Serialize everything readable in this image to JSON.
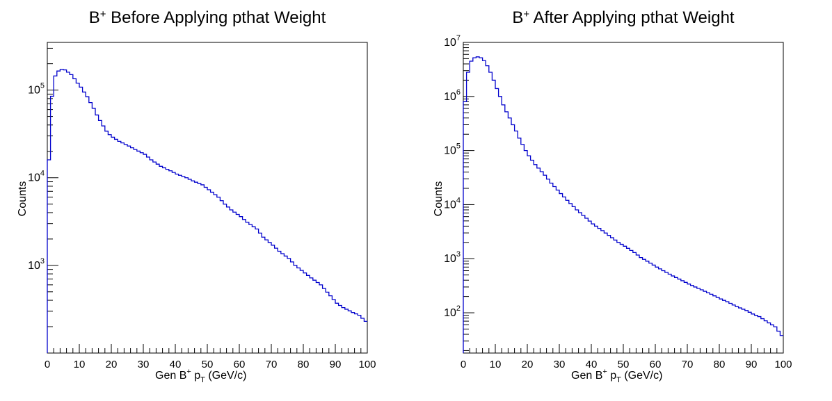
{
  "chart_data": [
    {
      "type": "line",
      "title": {
        "main": "B",
        "sup": "+",
        "rest": " Before Applying pthat Weight"
      },
      "xlabel": {
        "pre": "Gen B",
        "sup": "+",
        "mid": " p",
        "sub": "T",
        "post": " (GeV/c)"
      },
      "ylabel": "Counts",
      "xlim": [
        0,
        100
      ],
      "ylim": [
        100,
        350000
      ],
      "yscale": "log",
      "x_ticks": [
        "0",
        "10",
        "20",
        "30",
        "40",
        "50",
        "60",
        "70",
        "80",
        "90",
        "100"
      ],
      "y_ticks": [
        {
          "base": "10",
          "exp": "3",
          "value": 1000
        },
        {
          "base": "10",
          "exp": "4",
          "value": 10000
        },
        {
          "base": "10",
          "exp": "5",
          "value": 100000
        }
      ],
      "series": [
        {
          "color": "#0000cc",
          "x": [
            0,
            1,
            2,
            3,
            4,
            5,
            6,
            7,
            8,
            9,
            10,
            11,
            12,
            13,
            14,
            15,
            16,
            17,
            18,
            19,
            20,
            22,
            25,
            27,
            30,
            32,
            35,
            38,
            40,
            43,
            45,
            48,
            50,
            53,
            55,
            57,
            60,
            62,
            65,
            67,
            70,
            72,
            75,
            77,
            80,
            82,
            85,
            88,
            90,
            92,
            95,
            97,
            99
          ],
          "values": [
            16000,
            85000,
            145000,
            165000,
            172000,
            170000,
            160000,
            150000,
            135000,
            120000,
            108000,
            95000,
            84000,
            72000,
            62000,
            52000,
            45000,
            39000,
            34000,
            31000,
            29000,
            26000,
            23000,
            21000,
            18500,
            16000,
            13500,
            12000,
            11000,
            10000,
            9200,
            8300,
            7300,
            6000,
            5000,
            4300,
            3600,
            3100,
            2600,
            2100,
            1700,
            1450,
            1200,
            1000,
            820,
            720,
            600,
            450,
            370,
            330,
            290,
            270,
            230
          ]
        }
      ]
    },
    {
      "type": "line",
      "title": {
        "main": "B",
        "sup": "+",
        "rest": " After Applying pthat Weight"
      },
      "xlabel": {
        "pre": "Gen B",
        "sup": "+",
        "mid": " p",
        "sub": "T",
        "post": " (GeV/c)"
      },
      "ylabel": "Counts",
      "xlim": [
        0,
        100
      ],
      "ylim": [
        18,
        10000000
      ],
      "yscale": "log",
      "x_ticks": [
        "0",
        "10",
        "20",
        "30",
        "40",
        "50",
        "60",
        "70",
        "80",
        "90",
        "100"
      ],
      "y_ticks": [
        {
          "base": "10",
          "exp": "2",
          "value": 100
        },
        {
          "base": "10",
          "exp": "3",
          "value": 1000
        },
        {
          "base": "10",
          "exp": "4",
          "value": 10000
        },
        {
          "base": "10",
          "exp": "5",
          "value": 100000
        },
        {
          "base": "10",
          "exp": "6",
          "value": 1000000
        },
        {
          "base": "10",
          "exp": "7",
          "value": 10000000
        }
      ],
      "series": [
        {
          "color": "#0000cc",
          "x": [
            0,
            1,
            2,
            3,
            4,
            5,
            6,
            7,
            8,
            9,
            10,
            11,
            12,
            13,
            14,
            15,
            16,
            17,
            18,
            19,
            20,
            22,
            25,
            27,
            30,
            32,
            35,
            38,
            40,
            43,
            45,
            48,
            50,
            53,
            55,
            57,
            60,
            62,
            65,
            67,
            70,
            72,
            75,
            77,
            80,
            82,
            85,
            88,
            90,
            92,
            95,
            97,
            99
          ],
          "values": [
            800000,
            2800000,
            4500000,
            5200000,
            5400000,
            5200000,
            4600000,
            3700000,
            2800000,
            2000000,
            1400000,
            1000000,
            700000,
            520000,
            400000,
            300000,
            230000,
            170000,
            130000,
            100000,
            80000,
            55000,
            35000,
            25000,
            16000,
            12000,
            8000,
            5600,
            4400,
            3300,
            2700,
            2000,
            1700,
            1300,
            1050,
            900,
            700,
            600,
            480,
            420,
            340,
            300,
            250,
            220,
            180,
            160,
            130,
            110,
            95,
            85,
            65,
            55,
            38
          ]
        }
      ]
    }
  ]
}
